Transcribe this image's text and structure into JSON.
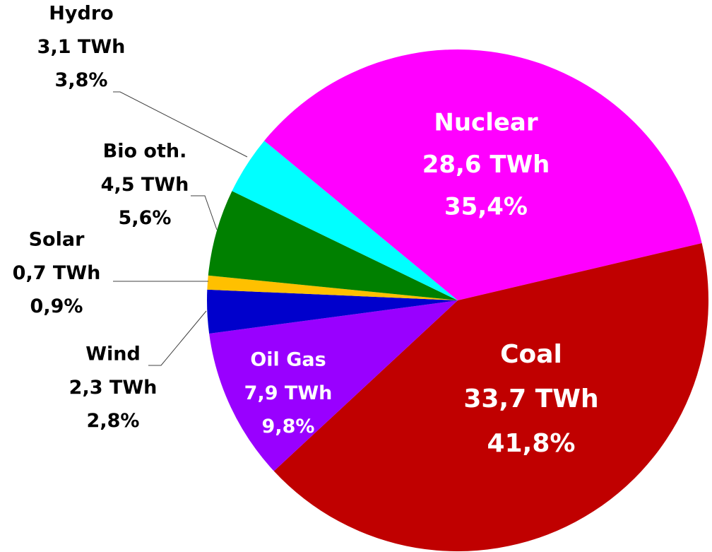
{
  "chart_data": {
    "type": "pie",
    "categories": [
      "Nuclear",
      "Coal",
      "Oil Gas",
      "Wind",
      "Solar",
      "Bio oth.",
      "Hydro"
    ],
    "values": [
      35.4,
      41.8,
      9.8,
      2.8,
      0.9,
      5.6,
      3.8
    ],
    "value_labels": [
      "35,4%",
      "41,8%",
      "9,8%",
      "2,8%",
      "0,9%",
      "5,6%",
      "3,8%"
    ],
    "twh": [
      28.6,
      33.7,
      7.9,
      2.3,
      0.7,
      4.5,
      3.1
    ],
    "twh_labels": [
      "28,6 TWh",
      "33,7 TWh",
      "7,9 TWh",
      "2,3 TWh",
      "0,7 TWh",
      "4,5 TWh",
      "3,1 TWh"
    ],
    "colors": [
      "#ff00ff",
      "#c00000",
      "#9900ff",
      "#0000cc",
      "#ffc000",
      "#008000",
      "#00ffff"
    ]
  }
}
